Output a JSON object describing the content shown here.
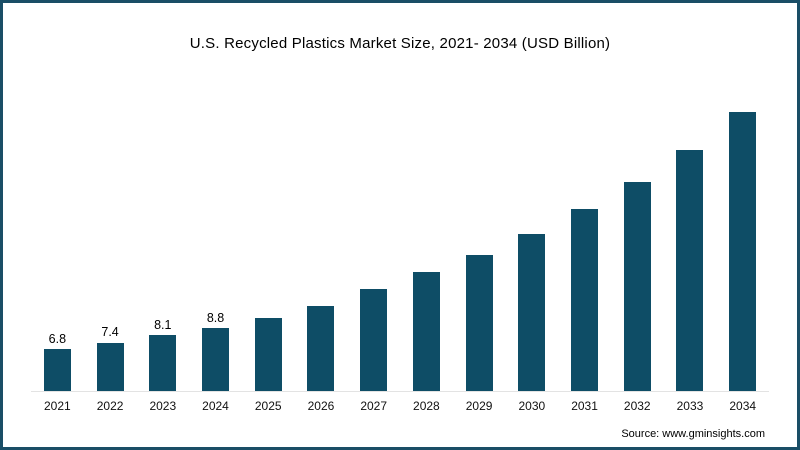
{
  "frame": {
    "source": "Source: www.gminsights.com"
  },
  "colors": {
    "bar": "#0e4d66",
    "frame_border": "#1a4e66",
    "title_text": "#000000",
    "axis_label": "#111111"
  },
  "chart_data": {
    "type": "bar",
    "title": "U.S. Recycled Plastics Market Size, 2021- 2034 (USD Billion)",
    "categories": [
      "2021",
      "2022",
      "2023",
      "2024",
      "2025",
      "2026",
      "2027",
      "2028",
      "2029",
      "2030",
      "2031",
      "2032",
      "2033",
      "2034"
    ],
    "values": [
      6.8,
      7.4,
      8.1,
      8.8,
      9.8,
      10.9,
      12.5,
      14.1,
      15.8,
      17.8,
      20.1,
      22.7,
      25.8,
      29.4
    ],
    "data_labels": [
      "6.8",
      "7.4",
      "8.1",
      "8.8",
      "",
      "",
      "",
      "",
      "",
      "",
      "",
      "",
      "",
      ""
    ],
    "xlabel": "",
    "ylabel": "",
    "legend": false,
    "grid": false,
    "bar_color": "#0e4d66",
    "values_note": "2025-2034 values estimated from bar heights; only 2021-2024 carry printed data labels"
  }
}
